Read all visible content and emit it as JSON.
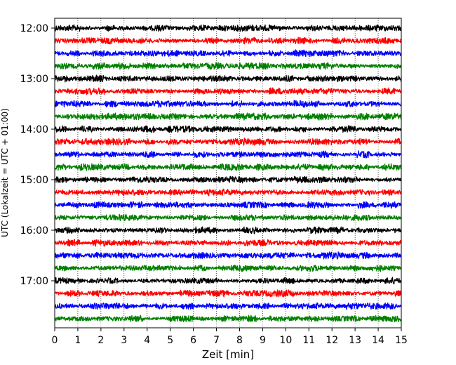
{
  "chart_data": {
    "type": "line",
    "title": "",
    "xlabel": "Zeit  [min]",
    "ylabel": "UTC (Lokalzeit = UTC + 01:00)",
    "xlim": [
      0,
      15
    ],
    "x_ticks": [
      0,
      1,
      2,
      3,
      4,
      5,
      6,
      7,
      8,
      9,
      10,
      11,
      12,
      13,
      14,
      15
    ],
    "x_tick_labels": [
      "0",
      "1",
      "2",
      "3",
      "4",
      "5",
      "6",
      "7",
      "8",
      "9",
      "10",
      "11",
      "12",
      "13",
      "14",
      "15"
    ],
    "y_ticks": [
      "12:00",
      "13:00",
      "14:00",
      "15:00",
      "16:00",
      "17:00"
    ],
    "trace_start": "12:00",
    "trace_interval_minutes": 15,
    "trace_count": 24,
    "trace_colors": [
      "#000000",
      "#ff0000",
      "#0000ff",
      "#008000"
    ],
    "grid": "vertical dotted lines at each minute"
  }
}
